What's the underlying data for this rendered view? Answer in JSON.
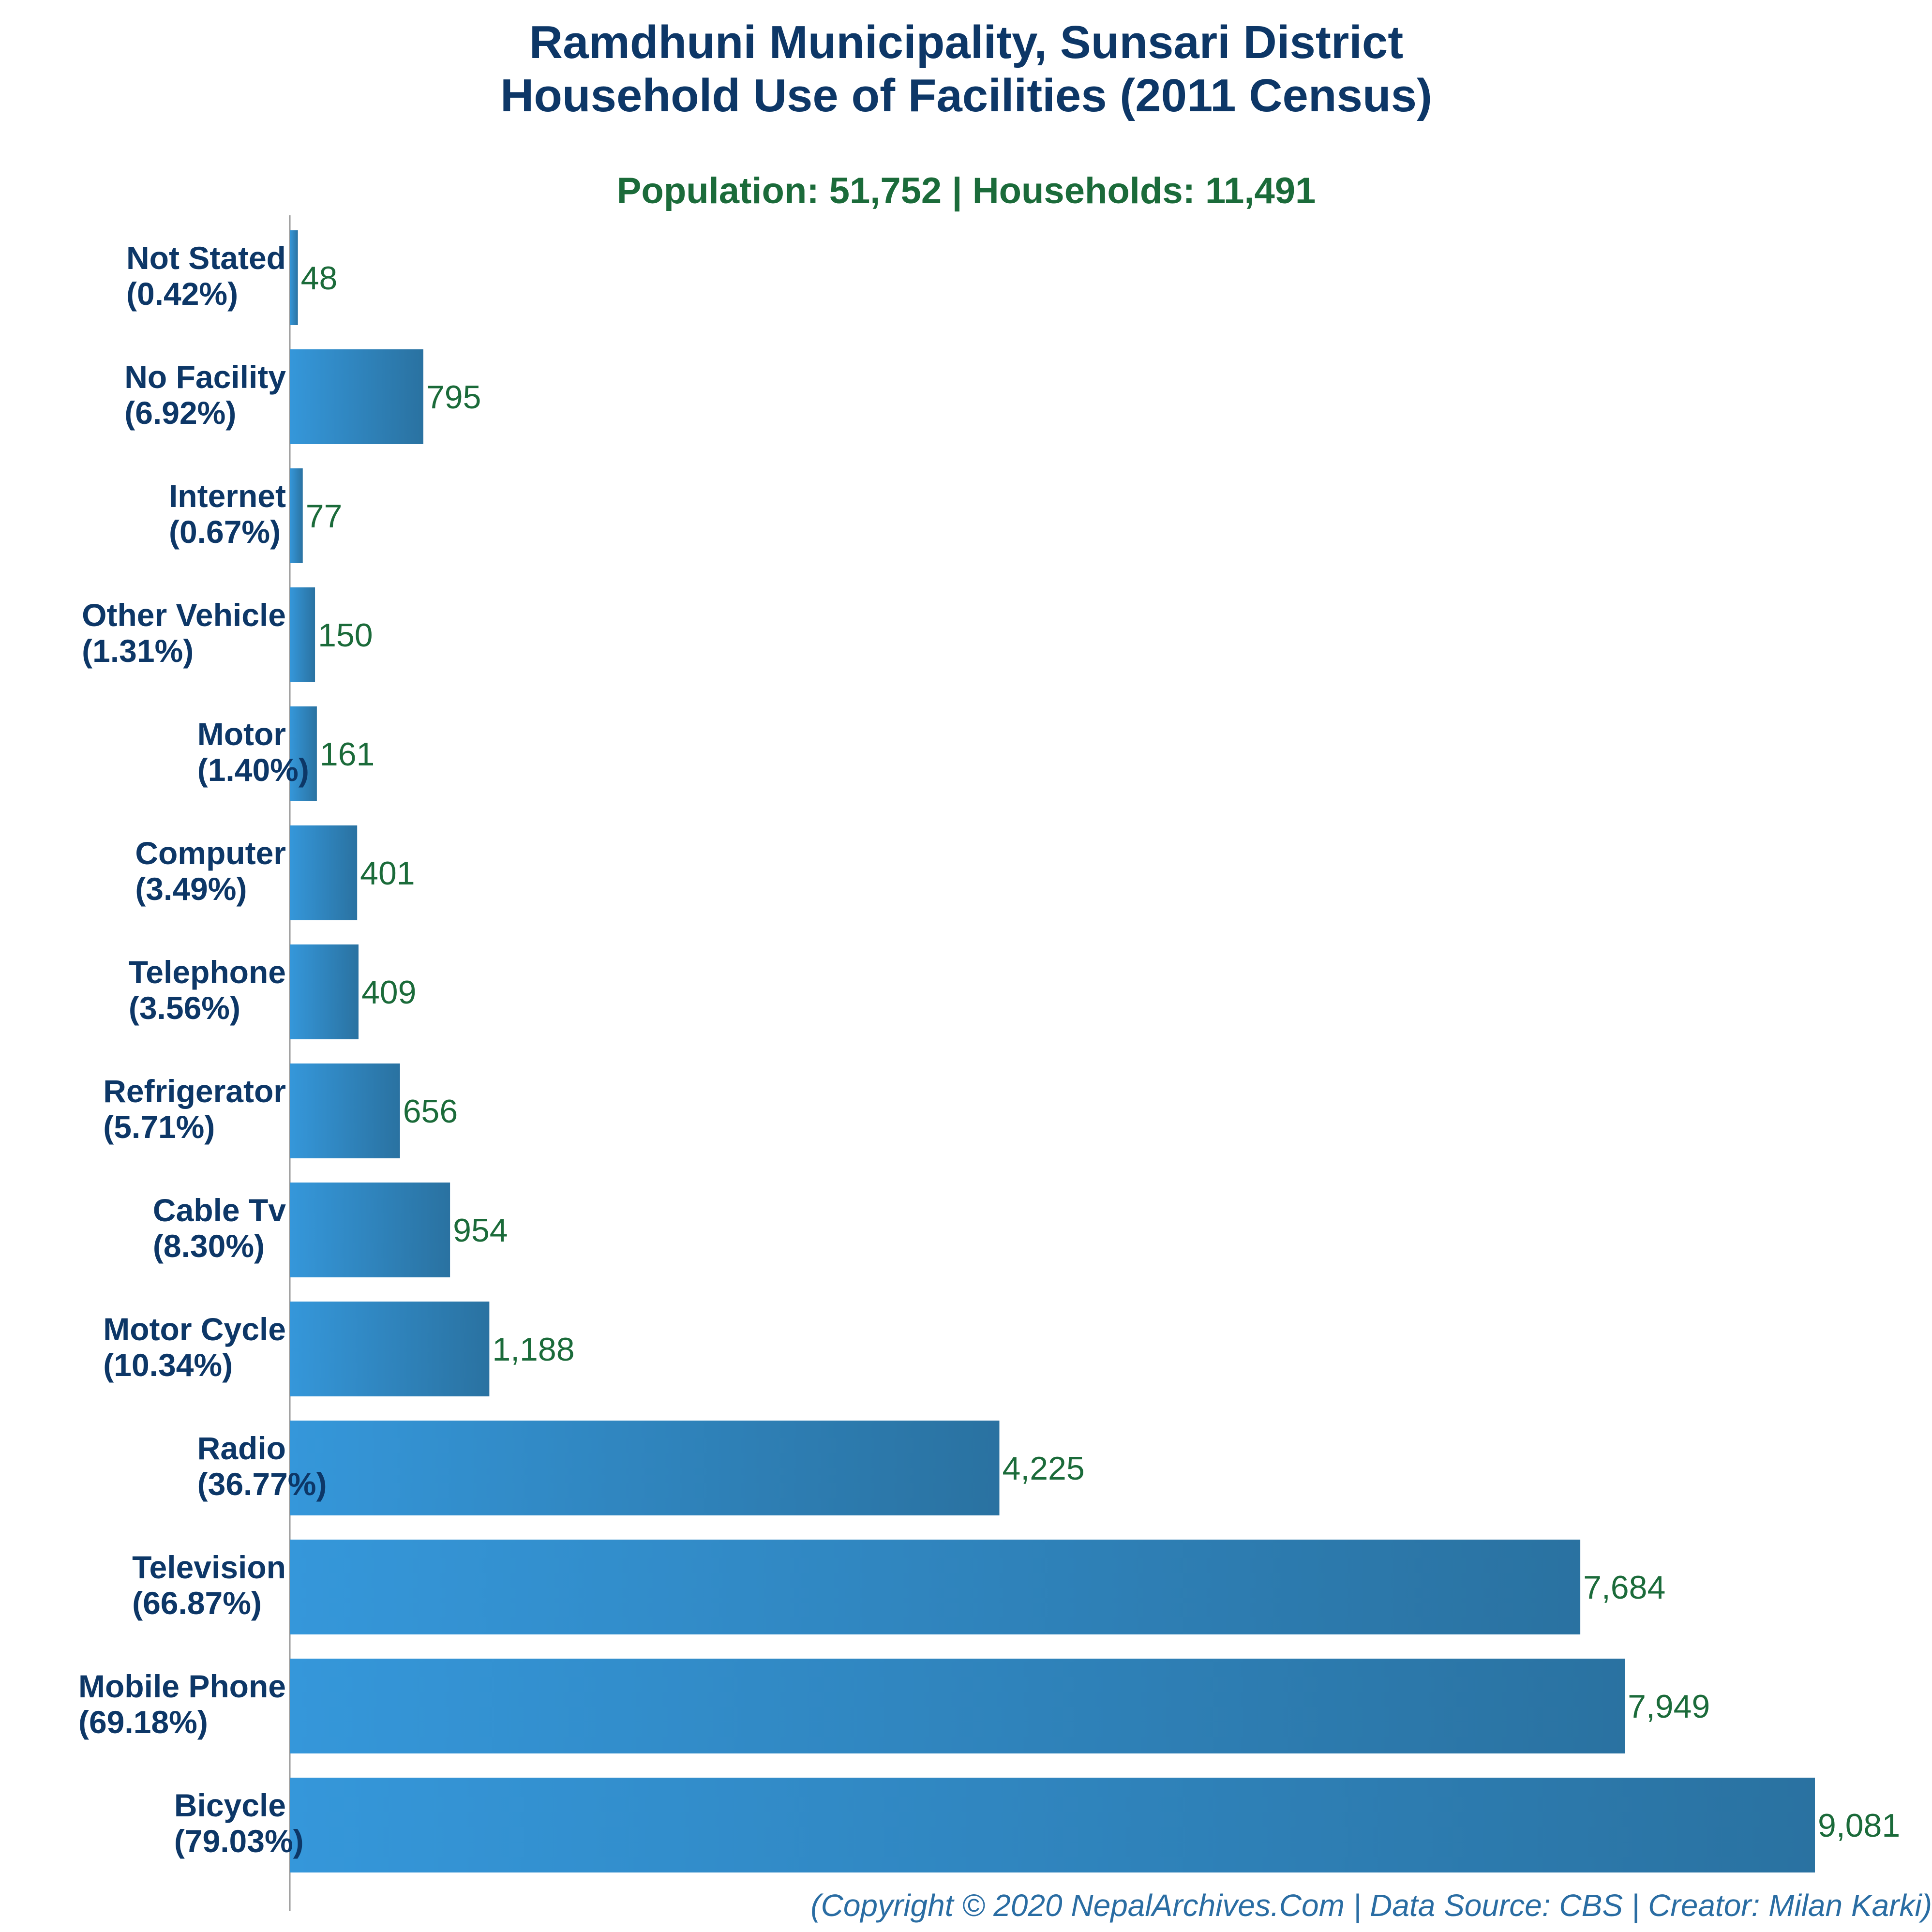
{
  "chart_data": {
    "type": "bar",
    "orientation": "horizontal",
    "title": [
      "Ramdhuni Municipality, Sunsari District",
      "Household Use of Facilities (2011 Census)"
    ],
    "subtitle": "Population: 51,752 | Households: 11,491",
    "footer": "(Copyright © 2020 NepalArchives.Com | Data Source: CBS | Creator: Milan Karki)",
    "categories": [
      {
        "name": "Not Stated",
        "pct": "(0.42%)",
        "value": 48,
        "label": "48"
      },
      {
        "name": "No Facility",
        "pct": "(6.92%)",
        "value": 795,
        "label": "795"
      },
      {
        "name": "Internet",
        "pct": "(0.67%)",
        "value": 77,
        "label": "77"
      },
      {
        "name": "Other Vehicle",
        "pct": "(1.31%)",
        "value": 150,
        "label": "150"
      },
      {
        "name": "Motor",
        "pct": "(1.40%)",
        "value": 161,
        "label": "161"
      },
      {
        "name": "Computer",
        "pct": "(3.49%)",
        "value": 401,
        "label": "401"
      },
      {
        "name": "Telephone",
        "pct": "(3.56%)",
        "value": 409,
        "label": "409"
      },
      {
        "name": "Refrigerator",
        "pct": "(5.71%)",
        "value": 656,
        "label": "656"
      },
      {
        "name": "Cable Tv",
        "pct": "(8.30%)",
        "value": 954,
        "label": "954"
      },
      {
        "name": "Motor Cycle",
        "pct": "(10.34%)",
        "value": 1188,
        "label": "1,188"
      },
      {
        "name": "Radio",
        "pct": "(36.77%)",
        "value": 4225,
        "label": "4,225"
      },
      {
        "name": "Television",
        "pct": "(66.87%)",
        "value": 7684,
        "label": "7,684"
      },
      {
        "name": "Mobile Phone",
        "pct": "(69.18%)",
        "value": 7949,
        "label": "7,949"
      },
      {
        "name": "Bicycle",
        "pct": "(79.03%)",
        "value": 9081,
        "label": "9,081"
      }
    ],
    "colors": {
      "bar_start": "#3597da",
      "bar_end": "#2a72a1",
      "axis": "#999999",
      "title": "#0d3767",
      "subtitle": "#1b6b3a",
      "value_label": "#1b6b3a",
      "footer": "#2a6da3"
    },
    "grid": false
  }
}
